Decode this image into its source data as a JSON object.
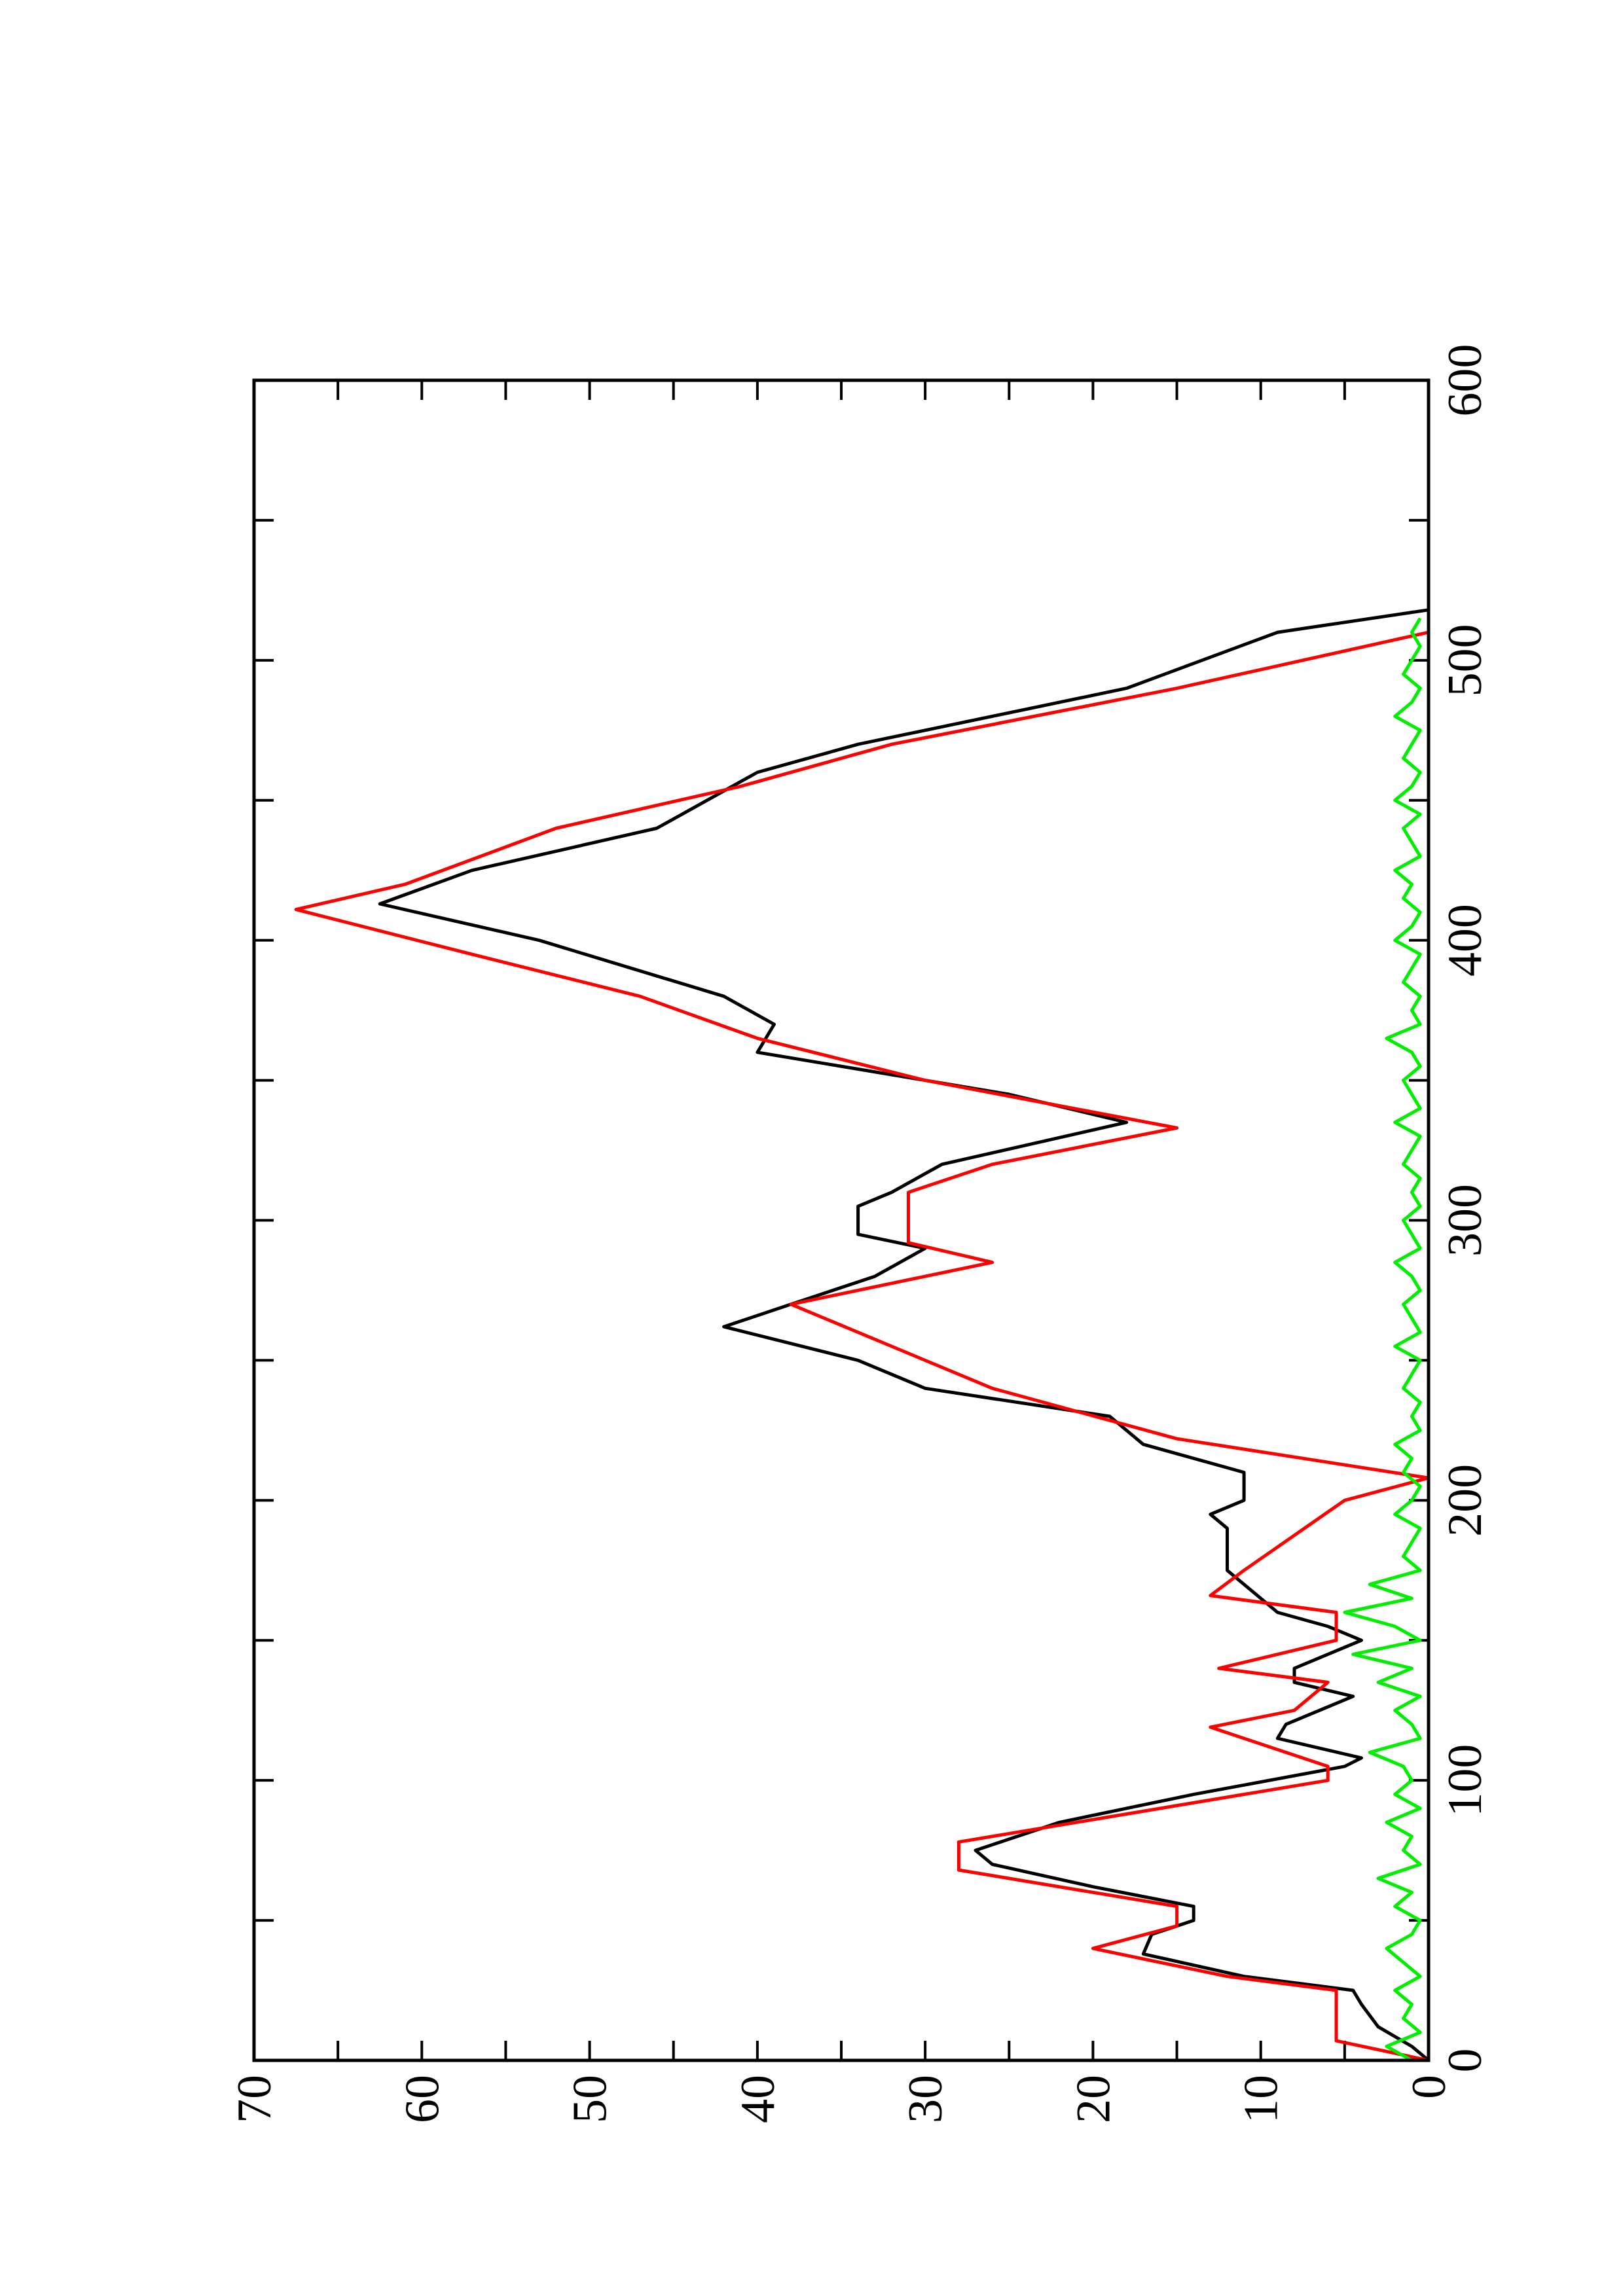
{
  "chart_data": {
    "type": "line",
    "xlim": [
      0,
      600
    ],
    "ylim": [
      0,
      70
    ],
    "xticks": [
      0,
      100,
      200,
      300,
      400,
      500,
      600
    ],
    "yticks": [
      0,
      10,
      20,
      30,
      40,
      50,
      60,
      70
    ],
    "xminorticks": [
      50,
      150,
      250,
      350,
      450,
      550
    ],
    "yminorticks": [
      5,
      15,
      25,
      35,
      45,
      55,
      65
    ],
    "rotation": -90,
    "series": [
      {
        "color": "#000000",
        "x": [
          0,
          5,
          12,
          20,
          25,
          30,
          38,
          45,
          50,
          55,
          62,
          70,
          75,
          85,
          95,
          105,
          108,
          115,
          120,
          130,
          135,
          140,
          145,
          150,
          155,
          160,
          170,
          175,
          185,
          190,
          195,
          200,
          210,
          220,
          230,
          240,
          250,
          262,
          270,
          280,
          290,
          295,
          305,
          310,
          320,
          335,
          345,
          360,
          370,
          380,
          400,
          413,
          425,
          440,
          460,
          470,
          490,
          510,
          518
        ],
        "values": [
          0,
          1,
          3,
          4,
          4.5,
          11,
          17,
          16.5,
          14,
          14,
          20,
          26,
          27,
          22,
          14,
          5,
          4,
          9,
          8.5,
          4.5,
          8,
          8,
          6,
          4,
          6,
          9,
          11,
          12,
          12,
          12,
          13,
          11,
          11,
          17,
          19,
          30,
          34,
          42,
          38,
          33,
          30,
          34,
          34,
          32,
          29,
          18,
          25,
          40,
          39,
          42,
          53,
          62.5,
          57,
          46,
          40,
          34,
          18,
          9,
          0
        ]
      },
      {
        "color": "#ff0000",
        "x": [
          0,
          7,
          25,
          30,
          40,
          48,
          55,
          68,
          78,
          100,
          105,
          119,
          125,
          135,
          140,
          150,
          160,
          166,
          175,
          200,
          208,
          222,
          240,
          270,
          285,
          292,
          310,
          320,
          333,
          350,
          365,
          380,
          395,
          411,
          420,
          440,
          455,
          470,
          490,
          510
        ],
        "values": [
          0,
          5.5,
          5.5,
          12,
          20,
          15,
          15,
          28,
          28,
          6,
          6,
          13,
          8,
          6,
          12.5,
          5.5,
          5.5,
          13,
          11,
          5,
          0,
          15,
          26,
          38,
          26,
          31,
          31,
          26,
          15,
          30,
          40,
          47,
          57,
          67.5,
          61,
          52,
          41,
          32,
          15,
          0
        ]
      },
      {
        "color": "#00ee00",
        "x": [
          0,
          5,
          10,
          15,
          20,
          25,
          30,
          35,
          40,
          45,
          50,
          55,
          60,
          65,
          70,
          75,
          80,
          85,
          90,
          95,
          100,
          105,
          110,
          115,
          120,
          125,
          130,
          135,
          140,
          145,
          150,
          155,
          160,
          165,
          170,
          175,
          180,
          185,
          190,
          195,
          200,
          205,
          210,
          215,
          220,
          225,
          230,
          235,
          240,
          245,
          250,
          255,
          260,
          265,
          270,
          275,
          280,
          285,
          290,
          295,
          300,
          305,
          310,
          315,
          320,
          325,
          330,
          335,
          340,
          345,
          350,
          355,
          360,
          365,
          370,
          375,
          380,
          385,
          390,
          395,
          400,
          405,
          410,
          415,
          420,
          425,
          430,
          435,
          440,
          445,
          450,
          455,
          460,
          465,
          470,
          475,
          480,
          485,
          490,
          495,
          500,
          505,
          510,
          515
        ],
        "values": [
          1,
          2.5,
          0.5,
          1.5,
          1,
          2,
          0.5,
          1.5,
          2.5,
          1,
          0.5,
          2,
          1,
          3,
          0.5,
          1.5,
          1,
          2.5,
          0.5,
          2,
          1,
          1.5,
          3.5,
          0.5,
          1,
          2,
          0.5,
          3,
          1,
          4.5,
          0.5,
          2,
          5,
          1,
          3.5,
          0.5,
          1.5,
          1,
          0.5,
          2,
          1,
          0.5,
          1.5,
          1,
          2,
          0.5,
          1,
          0.5,
          1.5,
          1,
          0.5,
          2,
          0.5,
          1,
          1.5,
          0.5,
          1,
          2,
          0.5,
          1,
          1.5,
          0.5,
          1,
          0.5,
          1.5,
          1,
          0.5,
          2,
          0.5,
          1,
          1.5,
          0.5,
          1,
          2.5,
          0.5,
          1,
          0.5,
          1.5,
          1,
          0.5,
          2,
          1,
          0.5,
          1.5,
          1,
          2,
          0.5,
          1,
          1.5,
          0.5,
          2,
          1,
          0.5,
          1.5,
          1,
          0.5,
          2,
          1,
          0.5,
          1.5,
          1,
          0.5,
          1,
          0.5
        ]
      }
    ]
  }
}
